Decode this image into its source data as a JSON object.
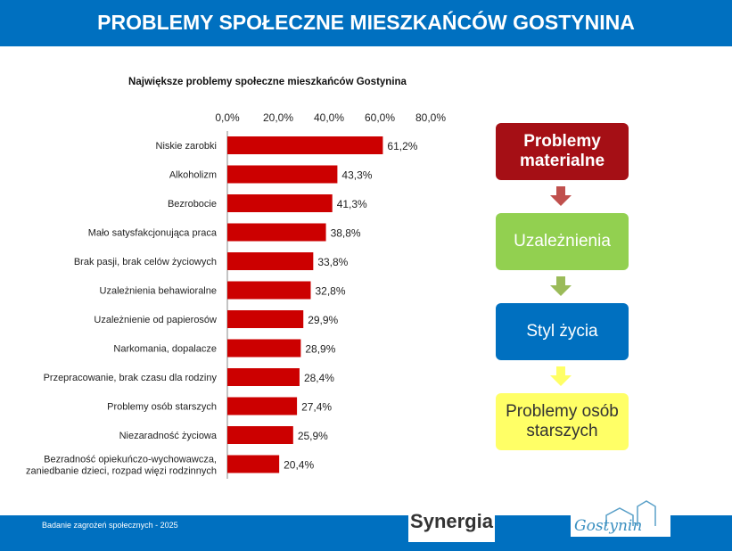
{
  "header": {
    "title": "PROBLEMY SPOŁECZNE MIESZKAŃCÓW GOSTYNINA"
  },
  "footer": {
    "text": "Badanie zagrożeń społecznych - 2025",
    "logo_synergia": "Synergia",
    "logo_gostynin": "Gostynin"
  },
  "flow": {
    "boxes": [
      {
        "label": "Problemy materialne",
        "color": "#a50f15",
        "text_color": "#ffffff",
        "arrow_color": "#c0504d"
      },
      {
        "label": "Uzależnienia",
        "color": "#92d050",
        "text_color": "#ffffff",
        "arrow_color": "#9bbb59"
      },
      {
        "label": "Styl życia",
        "color": "#0070c0",
        "text_color": "#ffffff",
        "arrow_color": "#ffff66"
      },
      {
        "label": "Problemy osób starszych",
        "color": "#ffff66",
        "text_color": "#333333"
      }
    ]
  },
  "chart_data": {
    "type": "bar",
    "orientation": "horizontal",
    "title": "Największe problemy społeczne mieszkańców Gostynina",
    "xlim": [
      0,
      80
    ],
    "xticks": [
      "0,0%",
      "20,0%",
      "40,0%",
      "60,0%",
      "80,0%"
    ],
    "xtick_values": [
      0,
      20,
      40,
      60,
      80
    ],
    "bar_color": "#cc0000",
    "categories": [
      "Niskie zarobki",
      "Alkoholizm",
      "Bezrobocie",
      "Mało satysfakcjonująca praca",
      "Brak pasji, brak celów życiowych",
      "Uzależnienia behawioralne",
      "Uzależnienie od papierosów",
      "Narkomania, dopalacze",
      "Przepracowanie, brak czasu dla rodziny",
      "Problemy osób starszych",
      "Niezaradność życiowa",
      "Bezradność opiekuńczo-wychowawcza, zaniedbanie dzieci, rozpad więzi rodzinnych"
    ],
    "values": [
      61.2,
      43.3,
      41.3,
      38.8,
      33.8,
      32.8,
      29.9,
      28.9,
      28.4,
      27.4,
      25.9,
      20.4
    ],
    "labels": [
      "61,2%",
      "43,3%",
      "41,3%",
      "38,8%",
      "33,8%",
      "32,8%",
      "29,9%",
      "28,9%",
      "28,4%",
      "27,4%",
      "25,9%",
      "20,4%"
    ]
  }
}
